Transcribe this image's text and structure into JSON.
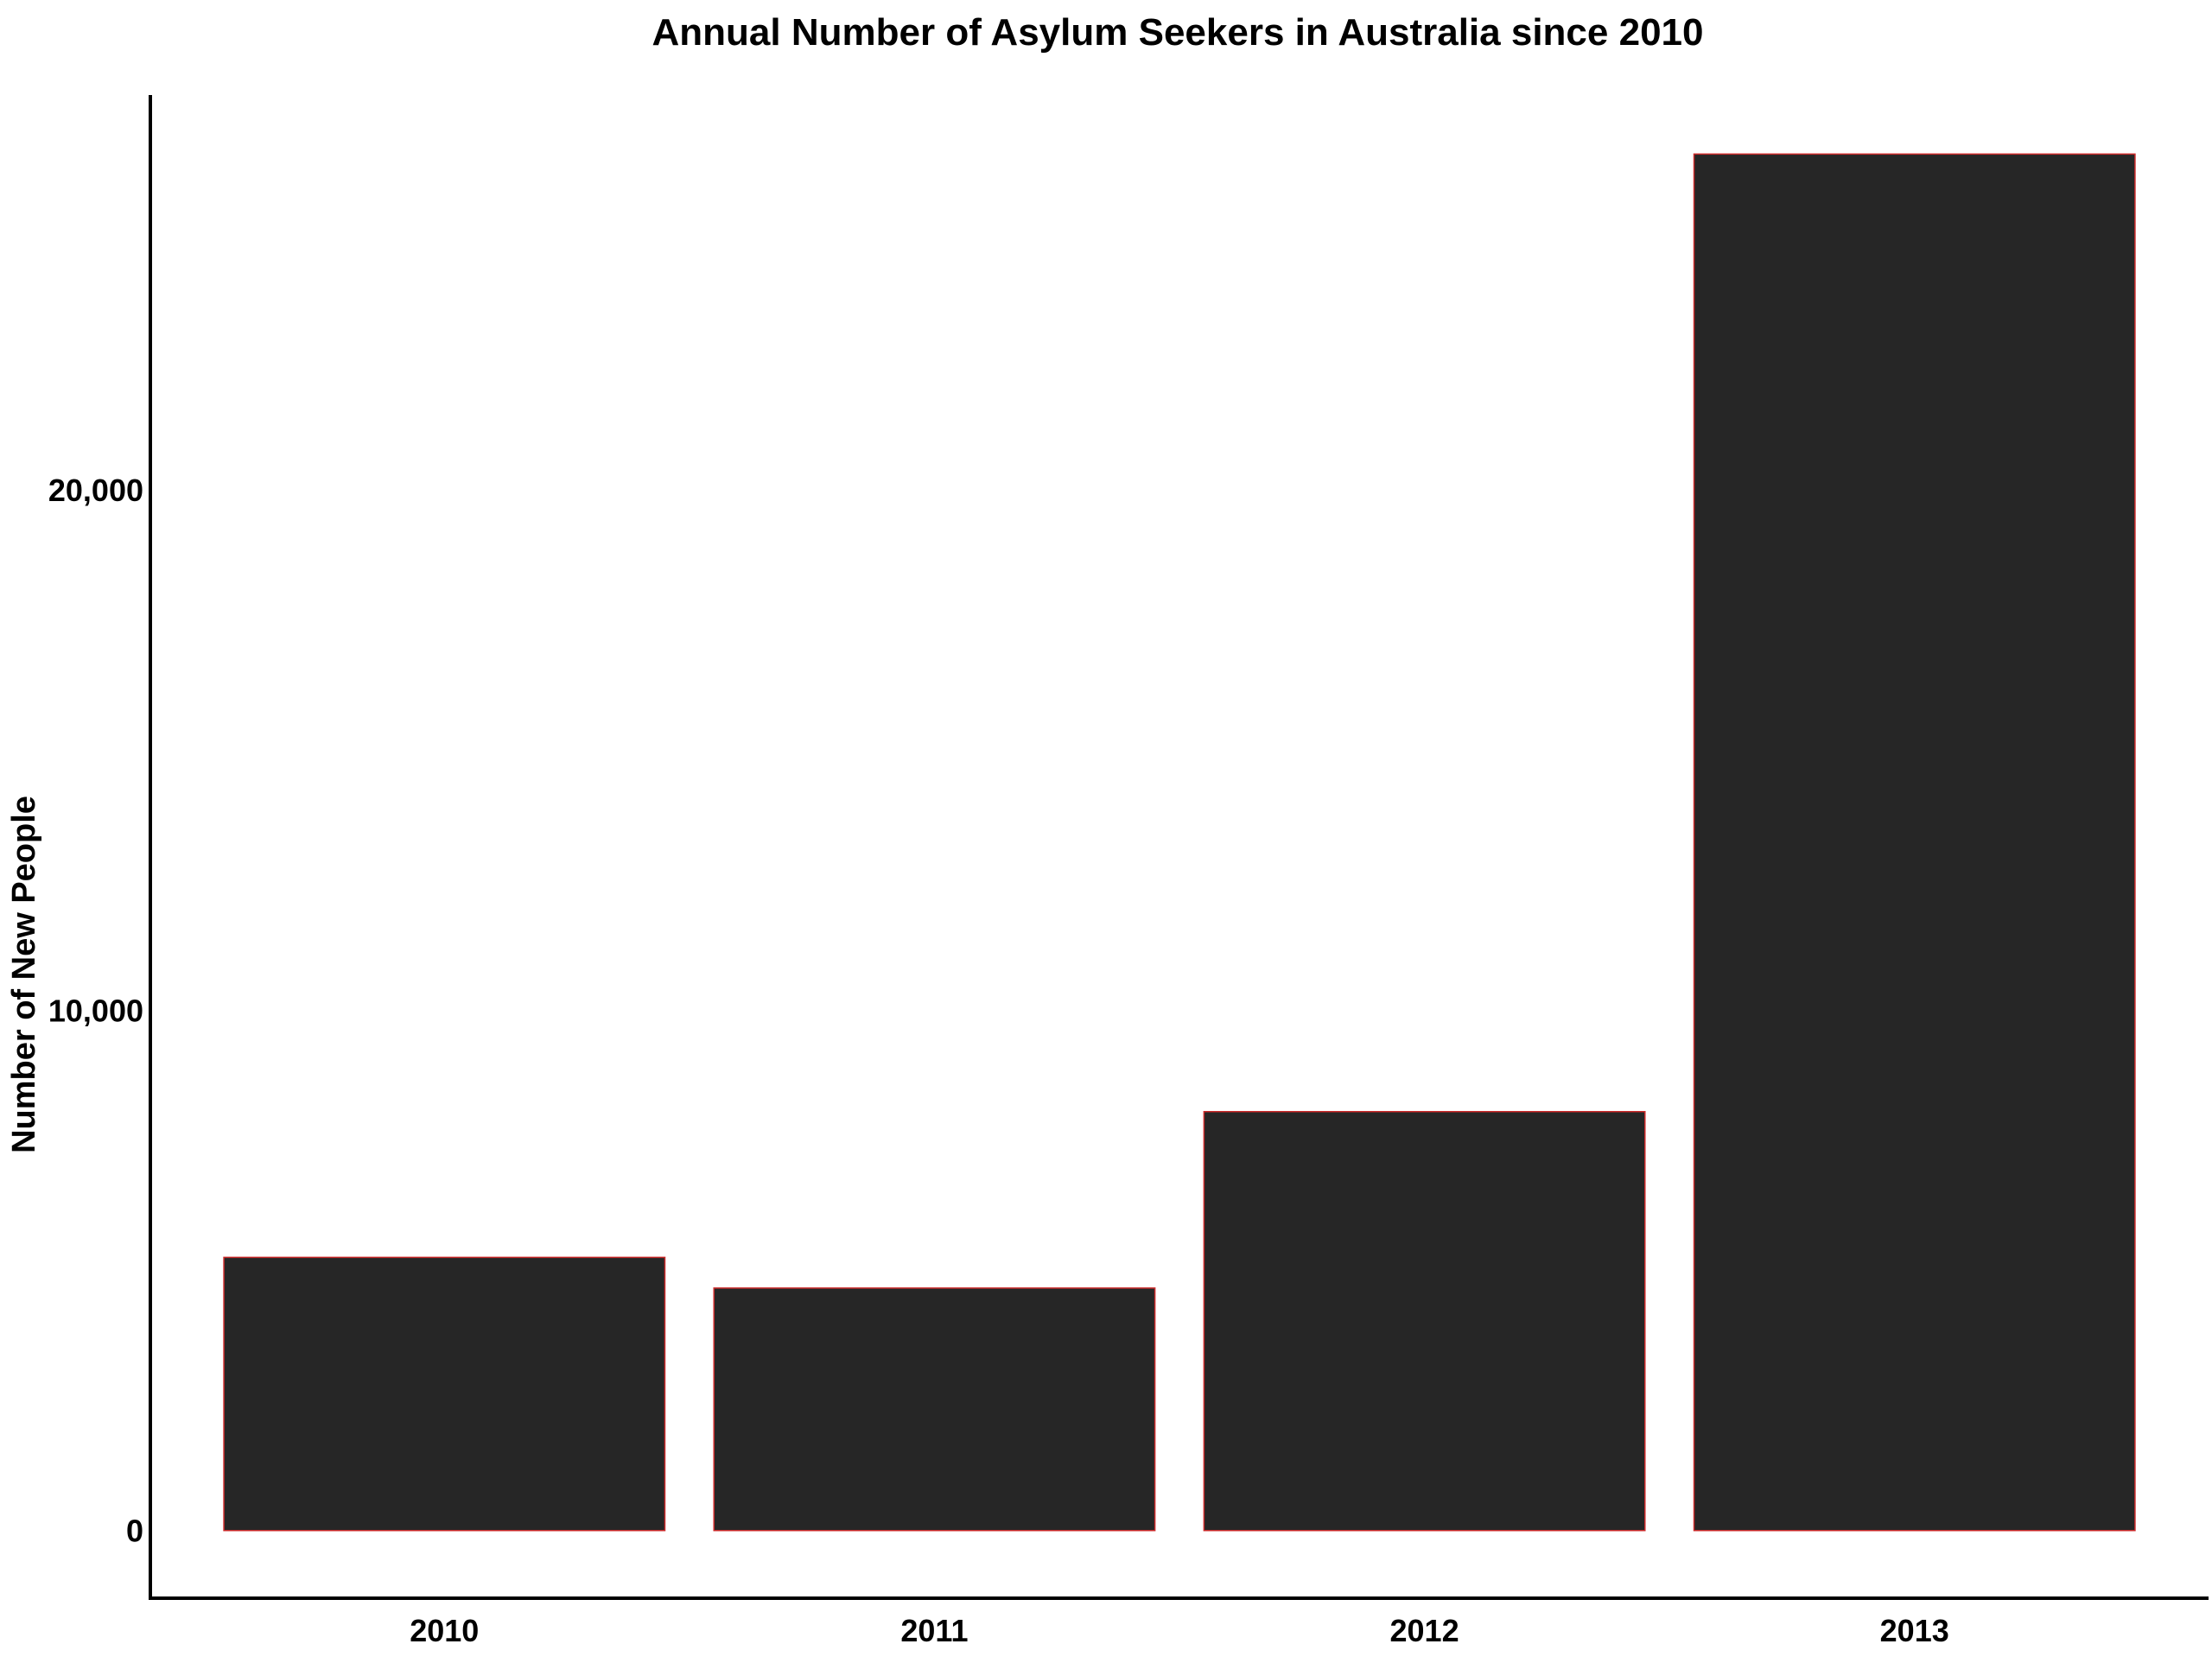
{
  "chart_data": {
    "type": "bar",
    "title": "Annual Number of Asylum Seekers in Australia since 2010",
    "xlabel": "",
    "ylabel": "Number of New People",
    "categories": [
      "2010",
      "2011",
      "2012",
      "2013"
    ],
    "values": [
      5250,
      4660,
      8050,
      26450
    ],
    "ylim": [
      -1300,
      27750
    ],
    "yticks": [
      0,
      10000,
      20000
    ],
    "ytick_labels": [
      "0",
      "10,000",
      "20,000"
    ],
    "grid": false,
    "legend": "none",
    "colors": {
      "bar_fill": "#262626",
      "bar_outline": "#cc2a2a",
      "axis": "#000000",
      "background": "#ffffff"
    }
  }
}
